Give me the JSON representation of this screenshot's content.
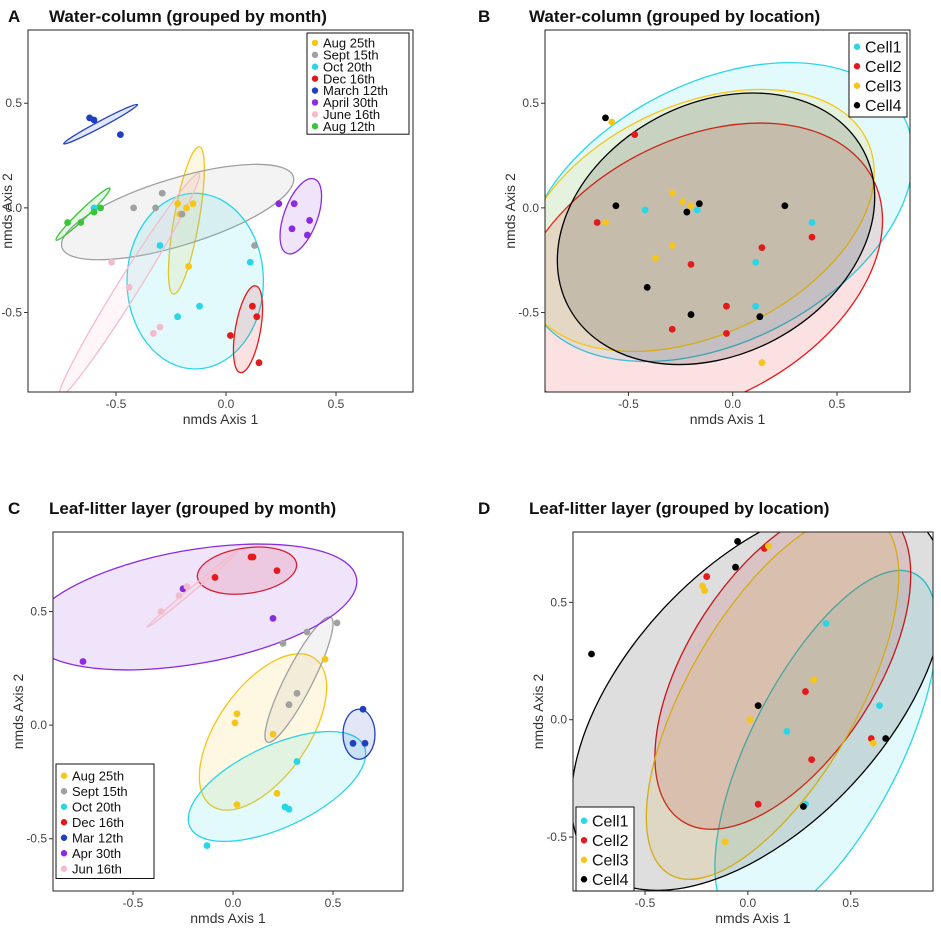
{
  "chart_data": [
    {
      "id": "A",
      "type": "scatter",
      "title": "Water-column (grouped by month)",
      "xlabel": "nmds Axis 1",
      "ylabel": "nmds Axis 2",
      "xlim": [
        -0.9,
        0.85
      ],
      "ylim": [
        -0.88,
        0.85
      ],
      "xticks": [
        -0.5,
        0.0,
        0.5
      ],
      "xtick_labels": [
        "-0.5",
        "0.0",
        "0.5"
      ],
      "yticks": [
        -0.5,
        0.0,
        0.5
      ],
      "ytick_labels": [
        "-0.5",
        "0.0",
        "0.5"
      ],
      "legend": "top-right",
      "series": [
        {
          "name": "Aug 25th",
          "color": "#F5C518",
          "points": [
            [
              -0.18,
              0.0
            ],
            [
              -0.15,
              0.02
            ],
            [
              -0.22,
              0.02
            ],
            [
              -0.17,
              -0.28
            ],
            [
              -0.21,
              -0.03
            ]
          ],
          "ellipse": {
            "cx": -0.18,
            "cy": -0.06,
            "rx": 0.34,
            "ry": 0.06,
            "angle": -80
          }
        },
        {
          "name": "Sept 15th",
          "color": "#A0A0A0",
          "points": [
            [
              -0.2,
              -0.03
            ],
            [
              -0.42,
              0.0
            ],
            [
              -0.29,
              0.07
            ],
            [
              -0.32,
              0.0
            ],
            [
              0.13,
              -0.18
            ]
          ],
          "ellipse": {
            "cx": -0.22,
            "cy": -0.02,
            "rx": 0.55,
            "ry": 0.16,
            "angle": -17
          }
        },
        {
          "name": "Oct 20th",
          "color": "#29D6E6",
          "points": [
            [
              -0.3,
              -0.18
            ],
            [
              -0.22,
              -0.52
            ],
            [
              -0.12,
              -0.47
            ],
            [
              0.11,
              -0.26
            ],
            [
              -0.6,
              0.0
            ]
          ],
          "ellipse": {
            "cx": -0.14,
            "cy": -0.35,
            "rx": 0.31,
            "ry": 0.42,
            "angle": 0
          }
        },
        {
          "name": "Dec 16th",
          "color": "#E31A1C",
          "points": [
            [
              0.12,
              -0.47
            ],
            [
              0.14,
              -0.52
            ],
            [
              0.02,
              -0.61
            ],
            [
              0.15,
              -0.74
            ]
          ],
          "ellipse": {
            "cx": 0.1,
            "cy": -0.58,
            "rx": 0.2,
            "ry": 0.06,
            "angle": -80
          }
        },
        {
          "name": "March 12th",
          "color": "#1F3FBF",
          "points": [
            [
              -0.62,
              0.43
            ],
            [
              -0.48,
              0.35
            ],
            [
              -0.6,
              0.42
            ]
          ],
          "ellipse": {
            "cx": -0.57,
            "cy": 0.4,
            "rx": 0.19,
            "ry": 0.015,
            "angle": -28
          }
        },
        {
          "name": "April 30th",
          "color": "#8A2BE2",
          "points": [
            [
              0.24,
              0.02
            ],
            [
              0.31,
              0.02
            ],
            [
              0.38,
              -0.06
            ],
            [
              0.37,
              -0.13
            ],
            [
              0.3,
              -0.1
            ]
          ],
          "ellipse": {
            "cx": 0.34,
            "cy": -0.04,
            "rx": 0.18,
            "ry": 0.08,
            "angle": -70
          }
        },
        {
          "name": "June 16th",
          "color": "#F4BCCB",
          "points": [
            [
              -0.52,
              -0.26
            ],
            [
              -0.44,
              -0.38
            ],
            [
              -0.3,
              -0.57
            ],
            [
              -0.33,
              -0.6
            ]
          ],
          "ellipse": {
            "cx": -0.44,
            "cy": -0.37,
            "rx": 0.6,
            "ry": 0.05,
            "angle": -58
          }
        },
        {
          "name": "Aug 12th",
          "color": "#3AC43A",
          "points": [
            [
              -0.66,
              -0.07
            ],
            [
              -0.6,
              -0.02
            ],
            [
              -0.57,
              0.0
            ],
            [
              -0.72,
              -0.07
            ]
          ],
          "ellipse": {
            "cx": -0.65,
            "cy": -0.03,
            "rx": 0.17,
            "ry": 0.02,
            "angle": -44
          }
        }
      ]
    },
    {
      "id": "B",
      "type": "scatter",
      "title": "Water-column (grouped by location)",
      "xlabel": "nmds Axis 1",
      "ylabel": "nmds Axis 2",
      "xlim": [
        -0.9,
        0.85
      ],
      "ylim": [
        -0.88,
        0.85
      ],
      "xticks": [
        -0.5,
        0.0,
        0.5
      ],
      "xtick_labels": [
        "-0.5",
        "0.0",
        "0.5"
      ],
      "yticks": [
        -0.5,
        0.0,
        0.5
      ],
      "ytick_labels": [
        "-0.5",
        "0.0",
        "0.5"
      ],
      "legend": "top-right",
      "series": [
        {
          "name": "Cell1",
          "color": "#29D6E6",
          "points": [
            [
              -0.42,
              -0.01
            ],
            [
              -0.17,
              -0.01
            ],
            [
              0.11,
              -0.26
            ],
            [
              0.38,
              -0.07
            ],
            [
              0.11,
              -0.47
            ]
          ],
          "ellipse": {
            "cx": -0.07,
            "cy": -0.02,
            "rx": 1.0,
            "ry": 0.62,
            "angle": -27
          }
        },
        {
          "name": "Cell2",
          "color": "#E31A1C",
          "points": [
            [
              -0.47,
              0.35
            ],
            [
              -0.65,
              -0.07
            ],
            [
              -0.2,
              -0.27
            ],
            [
              -0.03,
              -0.47
            ],
            [
              0.14,
              -0.19
            ],
            [
              0.38,
              -0.14
            ],
            [
              -0.29,
              -0.58
            ],
            [
              -0.03,
              -0.6
            ]
          ],
          "ellipse": {
            "cx": -0.17,
            "cy": -0.3,
            "rx": 0.95,
            "ry": 0.62,
            "angle": -28
          }
        },
        {
          "name": "Cell3",
          "color": "#F5C518",
          "points": [
            [
              -0.58,
              0.41
            ],
            [
              -0.61,
              -0.07
            ],
            [
              -0.29,
              0.07
            ],
            [
              -0.24,
              0.03
            ],
            [
              -0.37,
              -0.24
            ],
            [
              -0.2,
              0.01
            ],
            [
              -0.29,
              -0.18
            ],
            [
              0.14,
              -0.74
            ]
          ],
          "ellipse": {
            "cx": -0.17,
            "cy": -0.06,
            "rx": 0.9,
            "ry": 0.55,
            "angle": -25
          }
        },
        {
          "name": "Cell4",
          "color": "#000000",
          "points": [
            [
              -0.61,
              0.43
            ],
            [
              -0.56,
              0.01
            ],
            [
              -0.22,
              -0.02
            ],
            [
              -0.16,
              0.02
            ],
            [
              -0.41,
              -0.38
            ],
            [
              -0.2,
              -0.51
            ],
            [
              0.25,
              0.01
            ],
            [
              0.13,
              -0.52
            ]
          ],
          "ellipse": {
            "cx": -0.08,
            "cy": -0.1,
            "rx": 0.8,
            "ry": 0.6,
            "angle": -28
          }
        }
      ]
    },
    {
      "id": "C",
      "type": "scatter",
      "title": "Leaf-litter layer (grouped by month)",
      "xlabel": "nmds Axis 1",
      "ylabel": "nmds Axis 2",
      "xlim": [
        -0.9,
        0.85
      ],
      "ylim": [
        -0.73,
        0.85
      ],
      "xticks": [
        -0.5,
        0.0,
        0.5
      ],
      "xtick_labels": [
        "-0.5",
        "0.0",
        "0.5"
      ],
      "yticks": [
        -0.5,
        0.0,
        0.5
      ],
      "ytick_labels": [
        "-0.5",
        "0.0",
        "0.5"
      ],
      "legend": "bottom-left",
      "series": [
        {
          "name": "Aug 25th",
          "color": "#F5C518",
          "points": [
            [
              0.01,
              0.01
            ],
            [
              0.02,
              0.05
            ],
            [
              0.2,
              -0.04
            ],
            [
              0.46,
              0.29
            ],
            [
              0.02,
              -0.35
            ],
            [
              0.22,
              -0.3
            ]
          ],
          "ellipse": {
            "cx": 0.15,
            "cy": -0.03,
            "rx": 0.45,
            "ry": 0.2,
            "angle": -55
          }
        },
        {
          "name": "Sept 15th",
          "color": "#A0A0A0",
          "points": [
            [
              0.28,
              0.09
            ],
            [
              0.32,
              0.14
            ],
            [
              0.37,
              0.41
            ],
            [
              0.52,
              0.45
            ],
            [
              0.25,
              0.36
            ]
          ],
          "ellipse": {
            "cx": 0.33,
            "cy": 0.2,
            "rx": 0.35,
            "ry": 0.06,
            "angle": -63
          }
        },
        {
          "name": "Oct 20th",
          "color": "#29D6E6",
          "points": [
            [
              0.26,
              -0.36
            ],
            [
              0.28,
              -0.37
            ],
            [
              0.32,
              -0.16
            ],
            [
              -0.13,
              -0.53
            ]
          ],
          "ellipse": {
            "cx": 0.22,
            "cy": -0.27,
            "rx": 0.48,
            "ry": 0.18,
            "angle": -25
          }
        },
        {
          "name": "Dec 16th",
          "color": "#E31A1C",
          "points": [
            [
              0.09,
              0.74
            ],
            [
              0.1,
              0.74
            ],
            [
              0.22,
              0.68
            ],
            [
              -0.09,
              0.65
            ]
          ],
          "ellipse": {
            "cx": 0.07,
            "cy": 0.68,
            "rx": 0.25,
            "ry": 0.1,
            "angle": -8
          }
        },
        {
          "name": "Mar 12th",
          "color": "#1F3FBF",
          "points": [
            [
              0.6,
              -0.08
            ],
            [
              0.66,
              -0.08
            ],
            [
              0.65,
              0.07
            ]
          ],
          "ellipse": {
            "cx": 0.63,
            "cy": -0.04,
            "rx": 0.08,
            "ry": 0.11,
            "angle": 0
          }
        },
        {
          "name": "Apr 30th",
          "color": "#8A2BE2",
          "points": [
            [
              -0.75,
              0.28
            ],
            [
              -0.25,
              0.6
            ],
            [
              0.2,
              0.47
            ]
          ],
          "ellipse": {
            "cx": -0.2,
            "cy": 0.52,
            "rx": 0.83,
            "ry": 0.25,
            "angle": -10
          }
        },
        {
          "name": "Jun 16th",
          "color": "#F4BCCB",
          "points": [
            [
              -0.27,
              0.57
            ],
            [
              -0.23,
              0.61
            ],
            [
              -0.36,
              0.5
            ]
          ],
          "ellipse": {
            "cx": -0.2,
            "cy": 0.6,
            "rx": 0.3,
            "ry": 0.01,
            "angle": -40
          }
        }
      ]
    },
    {
      "id": "D",
      "type": "scatter",
      "title": "Leaf-litter layer (grouped by location)",
      "xlabel": "nmds Axis 1",
      "ylabel": "nmds Axis 2",
      "xlim": [
        -0.85,
        0.9
      ],
      "ylim": [
        -0.73,
        0.8
      ],
      "xticks": [
        -0.5,
        0.0,
        0.5
      ],
      "xtick_labels": [
        "-0.5",
        "0.0",
        "0.5"
      ],
      "yticks": [
        -0.5,
        0.0,
        0.5
      ],
      "ytick_labels": [
        "-0.5",
        "0.0",
        "0.5"
      ],
      "legend": "bottom-left",
      "series": [
        {
          "name": "Cell1",
          "color": "#29D6E6",
          "points": [
            [
              0.38,
              0.41
            ],
            [
              0.19,
              -0.05
            ],
            [
              0.64,
              0.06
            ],
            [
              0.28,
              -0.36
            ]
          ],
          "ellipse": {
            "cx": 0.38,
            "cy": -0.12,
            "rx": 0.95,
            "ry": 0.32,
            "angle": -63
          }
        },
        {
          "name": "Cell2",
          "color": "#E31A1C",
          "points": [
            [
              -0.2,
              0.61
            ],
            [
              0.08,
              0.73
            ],
            [
              0.28,
              0.12
            ],
            [
              0.31,
              -0.17
            ],
            [
              0.05,
              -0.36
            ],
            [
              0.6,
              -0.08
            ]
          ],
          "ellipse": {
            "cx": 0.17,
            "cy": 0.23,
            "rx": 0.9,
            "ry": 0.4,
            "angle": -57
          }
        },
        {
          "name": "Cell3",
          "color": "#F5C518",
          "points": [
            [
              -0.22,
              0.57
            ],
            [
              -0.21,
              0.55
            ],
            [
              0.1,
              0.74
            ],
            [
              0.32,
              0.17
            ],
            [
              0.01,
              0.0
            ],
            [
              0.61,
              -0.1
            ],
            [
              -0.11,
              -0.52
            ]
          ],
          "ellipse": {
            "cx": 0.12,
            "cy": 0.1,
            "rx": 1.0,
            "ry": 0.36,
            "angle": -60
          }
        },
        {
          "name": "Cell4",
          "color": "#000000",
          "points": [
            [
              -0.05,
              0.76
            ],
            [
              -0.06,
              0.65
            ],
            [
              0.05,
              0.06
            ],
            [
              0.27,
              -0.37
            ],
            [
              0.67,
              -0.08
            ],
            [
              -0.76,
              0.28
            ]
          ],
          "ellipse": {
            "cx": 0.05,
            "cy": 0.1,
            "rx": 1.15,
            "ry": 0.55,
            "angle": -47
          }
        }
      ]
    }
  ]
}
